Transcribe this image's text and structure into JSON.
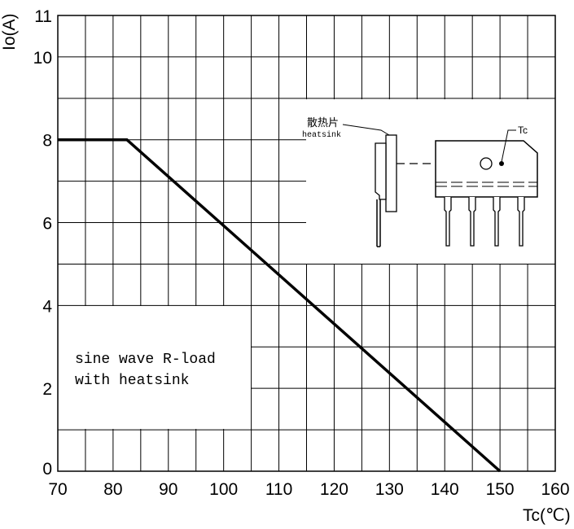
{
  "chart_data": {
    "type": "line",
    "title": "",
    "xlabel": "Tc(℃)",
    "ylabel": "Io(A)",
    "xlim": [
      70,
      160
    ],
    "ylim": [
      0,
      11
    ],
    "x_ticks": [
      70,
      80,
      90,
      100,
      110,
      120,
      130,
      140,
      150,
      160
    ],
    "y_ticks": [
      0,
      2,
      4,
      6,
      8,
      10,
      11
    ],
    "grid": true,
    "series": [
      {
        "x": [
          70,
          82.5,
          150
        ],
        "y": [
          8,
          8,
          0
        ]
      }
    ],
    "annotations": {
      "legend_line1": "sine wave R-load",
      "legend_line2": "with heatsink",
      "heatsink_cn": "散热片",
      "heatsink_en": "heatsink",
      "tc_label": "Tc"
    }
  }
}
